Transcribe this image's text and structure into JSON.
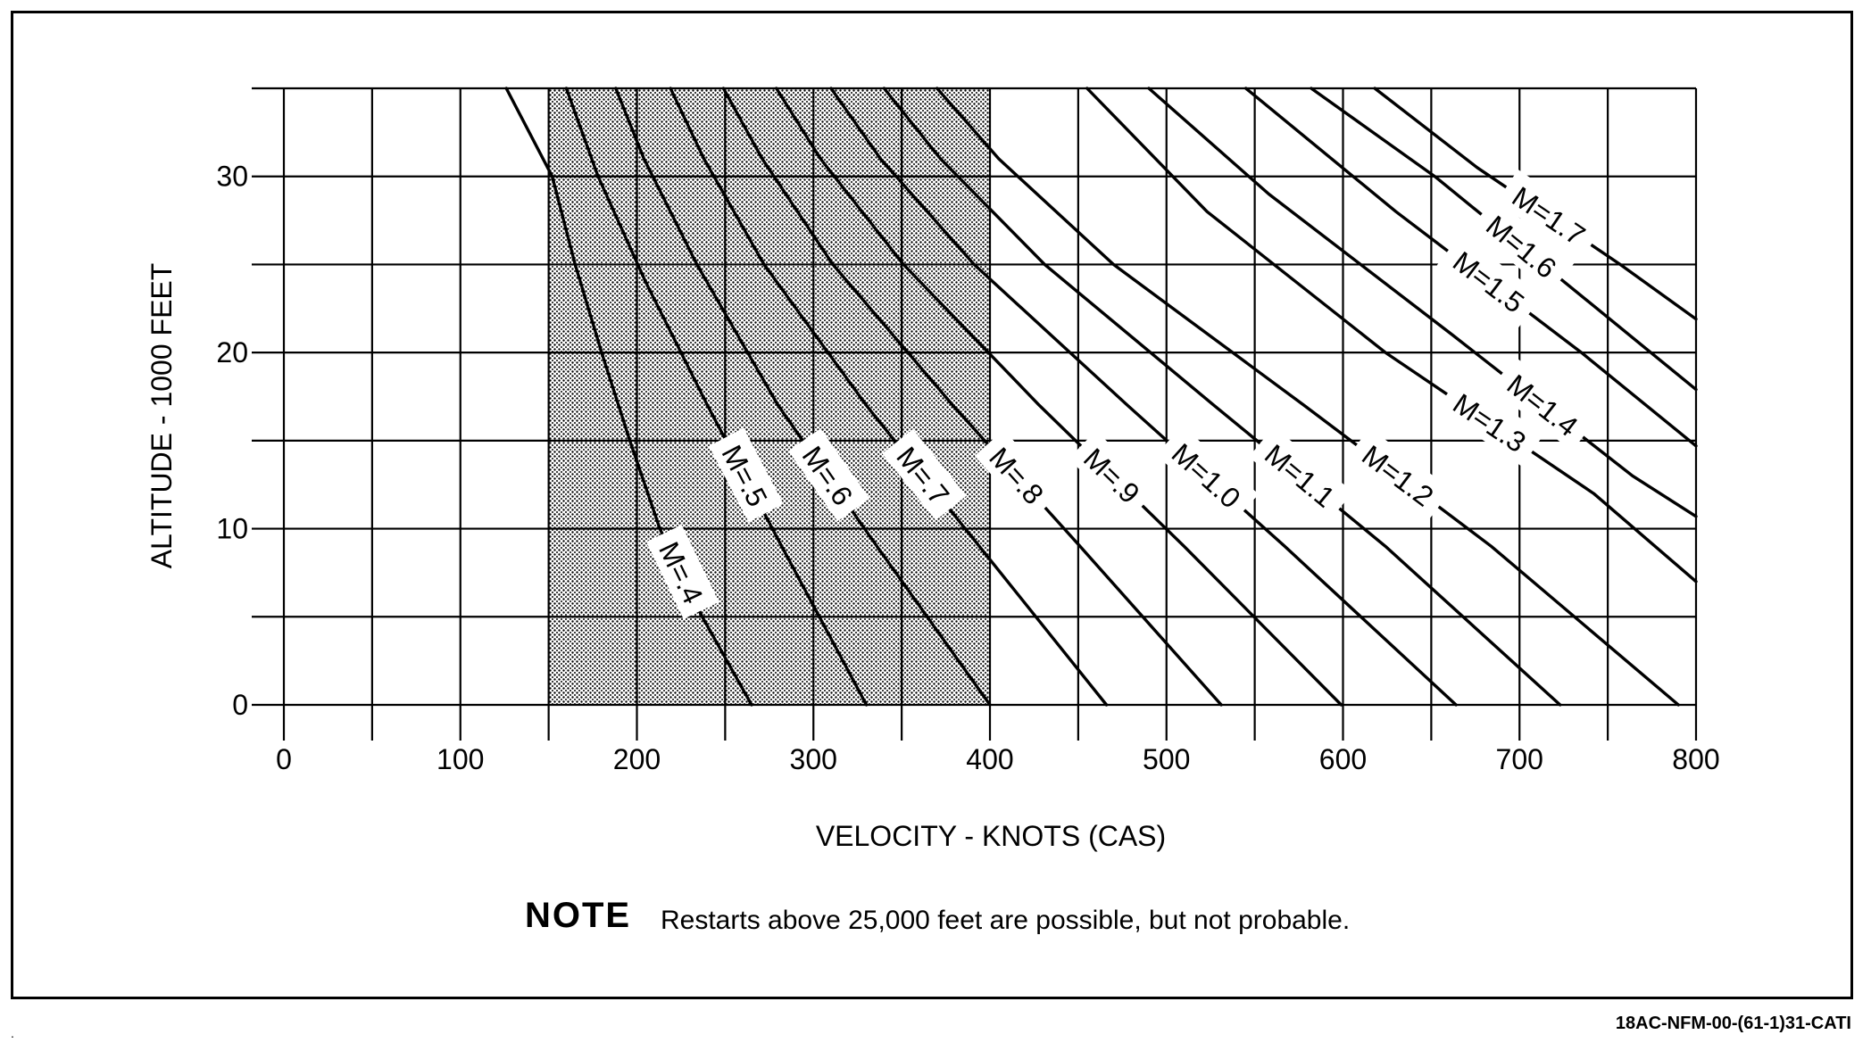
{
  "chart_data": {
    "type": "line",
    "xlabel": "VELOCITY - KNOTS (CAS)",
    "ylabel": "ALTITUDE - 1000 FEET",
    "xlim": [
      0,
      800
    ],
    "ylim": [
      0,
      35
    ],
    "x_ticks": [
      "0",
      "100",
      "200",
      "300",
      "400",
      "500",
      "600",
      "700",
      "800"
    ],
    "y_ticks": [
      "0",
      "10",
      "20",
      "30"
    ],
    "grid": true,
    "shaded_region": {
      "x": [
        150,
        400
      ],
      "y": [
        0,
        35
      ]
    },
    "series": [
      {
        "name": "M=.4",
        "points": [
          [
            265,
            0
          ],
          [
            237,
            5
          ],
          [
            213,
            10
          ],
          [
            196,
            15
          ],
          [
            180,
            20
          ],
          [
            165,
            25
          ],
          [
            152,
            30
          ],
          [
            126,
            35
          ]
        ]
      },
      {
        "name": "M=.5",
        "points": [
          [
            330,
            0
          ],
          [
            282,
            9
          ],
          [
            240,
            17
          ],
          [
            205,
            24
          ],
          [
            178,
            30
          ],
          [
            160,
            35
          ]
        ]
      },
      {
        "name": "M=.6",
        "points": [
          [
            400,
            0
          ],
          [
            336,
            9
          ],
          [
            280,
            17
          ],
          [
            234,
            25
          ],
          [
            204,
            31
          ],
          [
            188,
            35
          ]
        ]
      },
      {
        "name": "M=.7",
        "points": [
          [
            466,
            0
          ],
          [
            394,
            9
          ],
          [
            330,
            17
          ],
          [
            272,
            25
          ],
          [
            238,
            31
          ],
          [
            219,
            35
          ]
        ]
      },
      {
        "name": "M=.8",
        "points": [
          [
            531,
            0
          ],
          [
            451,
            9
          ],
          [
            379,
            17
          ],
          [
            311,
            25
          ],
          [
            271,
            31
          ],
          [
            249,
            35
          ]
        ]
      },
      {
        "name": "M=.9",
        "points": [
          [
            599,
            0
          ],
          [
            510,
            9
          ],
          [
            428,
            17
          ],
          [
            351,
            25
          ],
          [
            304,
            31
          ],
          [
            279,
            35
          ]
        ]
      },
      {
        "name": "M=1.0",
        "points": [
          [
            664,
            0
          ],
          [
            567,
            9
          ],
          [
            478,
            17
          ],
          [
            391,
            25
          ],
          [
            338,
            31
          ],
          [
            310,
            35
          ]
        ]
      },
      {
        "name": "M=1.1",
        "points": [
          [
            723,
            0
          ],
          [
            624,
            9
          ],
          [
            527,
            17
          ],
          [
            431,
            25
          ],
          [
            372,
            31
          ],
          [
            340,
            35
          ]
        ]
      },
      {
        "name": "M=1.2",
        "points": [
          [
            790,
            0
          ],
          [
            684,
            9
          ],
          [
            578,
            17
          ],
          [
            470,
            25
          ],
          [
            405,
            31
          ],
          [
            370,
            35
          ]
        ]
      },
      {
        "name": "M=1.3",
        "points": [
          [
            800,
            7.0
          ],
          [
            742,
            12
          ],
          [
            624,
            20
          ],
          [
            523,
            28
          ],
          [
            455,
            35
          ]
        ]
      },
      {
        "name": "M=1.4",
        "points": [
          [
            800,
            10.7
          ],
          [
            764,
            13
          ],
          [
            662,
            21
          ],
          [
            558,
            29
          ],
          [
            490,
            35
          ]
        ]
      },
      {
        "name": "M=1.5",
        "points": [
          [
            800,
            14.7
          ],
          [
            735,
            20
          ],
          [
            630,
            28
          ],
          [
            545,
            35
          ]
        ]
      },
      {
        "name": "M=1.6",
        "points": [
          [
            800,
            17.9
          ],
          [
            750,
            22
          ],
          [
            652,
            30
          ],
          [
            582,
            35
          ]
        ]
      },
      {
        "name": "M=1.7",
        "points": [
          [
            800,
            21.9
          ],
          [
            757,
            25
          ],
          [
            676,
            30.5
          ],
          [
            618,
            35
          ]
        ]
      }
    ]
  },
  "note": {
    "heading": "NOTE",
    "text": "Restarts above 25,000 feet are possible, but not probable."
  },
  "figure_id": "18AC-NFM-00-(61-1)31-CATI",
  "corner_mark": "."
}
